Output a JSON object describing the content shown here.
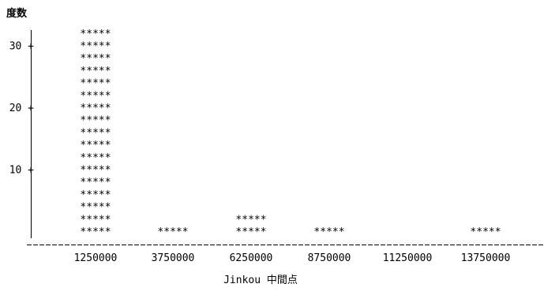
{
  "chart_data": {
    "type": "bar",
    "style": "ascii-histogram",
    "title": "",
    "ylabel": "度数",
    "xlabel": "Jinkou 中間点",
    "categories": [
      "1250000",
      "3750000",
      "6250000",
      "8750000",
      "11250000",
      "13750000"
    ],
    "values": [
      34,
      2,
      4,
      2,
      0,
      1
    ],
    "yticks": [
      {
        "value": 10,
        "label": "10 +"
      },
      {
        "value": 20,
        "label": "20 +"
      },
      {
        "value": 30,
        "label": "30 +"
      }
    ],
    "ylim": [
      0,
      34
    ],
    "bar_glyph": "*****",
    "counts_per_glyph_row": 2,
    "grid": false
  }
}
